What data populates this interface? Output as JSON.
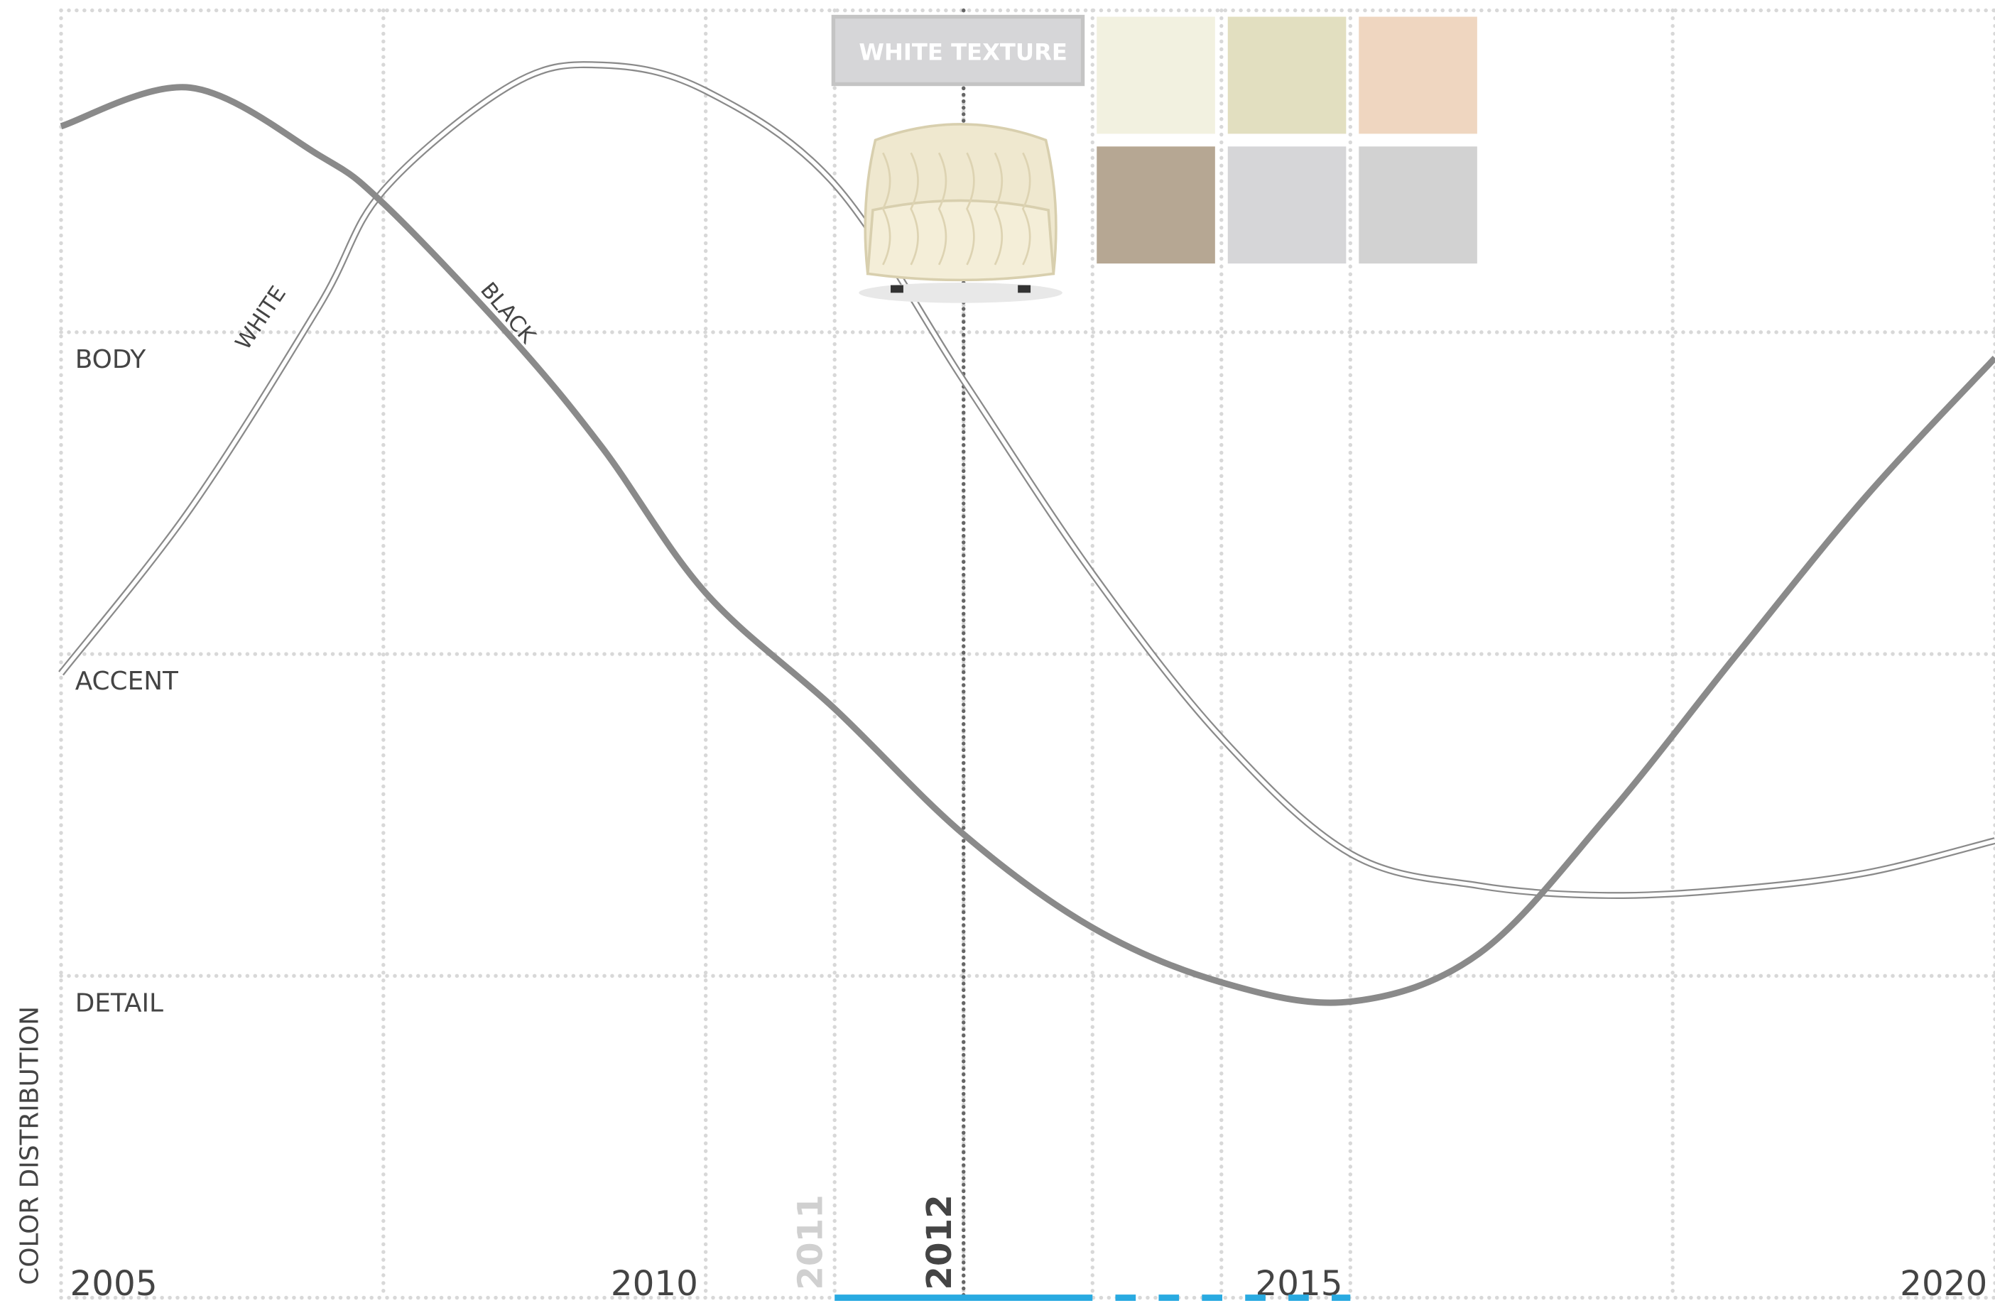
{
  "chart_data": {
    "type": "line",
    "y_axis_label": "COLOR DISTRIBUTION",
    "xlim": [
      2005,
      2020
    ],
    "xticks": [
      2005,
      2010,
      2015,
      2020
    ],
    "xgrid": [
      2005,
      2007.5,
      2010,
      2011,
      2012,
      2013,
      2014,
      2015,
      2017.5,
      2020
    ],
    "period_labels": [
      2011,
      2012
    ],
    "ylim": [
      0,
      4
    ],
    "yticks": [
      {
        "value": 1,
        "label": "DETAIL"
      },
      {
        "value": 2,
        "label": "ACCENT"
      },
      {
        "value": 3,
        "label": "BODY"
      }
    ],
    "grid": true,
    "x": [
      2005,
      2006,
      2007,
      2007.5,
      2008.5,
      2009.2,
      2010,
      2011,
      2012,
      2013,
      2014,
      2015,
      2016,
      2017,
      2018,
      2019,
      2020
    ],
    "series": [
      {
        "name": "WHITE",
        "color": "#8a8a8a",
        "style": "double",
        "values": [
          1.94,
          2.45,
          3.08,
          3.44,
          3.77,
          3.83,
          3.75,
          3.46,
          2.85,
          2.25,
          1.74,
          1.38,
          1.28,
          1.25,
          1.27,
          1.32,
          1.42
        ]
      },
      {
        "name": "BLACK",
        "color": "#8a8a8a",
        "style": "solid",
        "values": [
          3.64,
          3.76,
          3.55,
          3.4,
          2.98,
          2.64,
          2.19,
          1.83,
          1.44,
          1.15,
          0.98,
          0.92,
          1.07,
          1.5,
          2.0,
          2.49,
          2.92
        ]
      }
    ],
    "annotation": "WHITE TEXTURE",
    "swatches": [
      "#f2f1e0",
      "#e2dfc0",
      "#efd6c0",
      "#b6a793",
      "#d6d6d8",
      "#d2d2d2"
    ],
    "timeline": {
      "solid": [
        2011,
        2013
      ],
      "dashed": [
        2013,
        2015
      ],
      "color": "#29aae1"
    }
  }
}
